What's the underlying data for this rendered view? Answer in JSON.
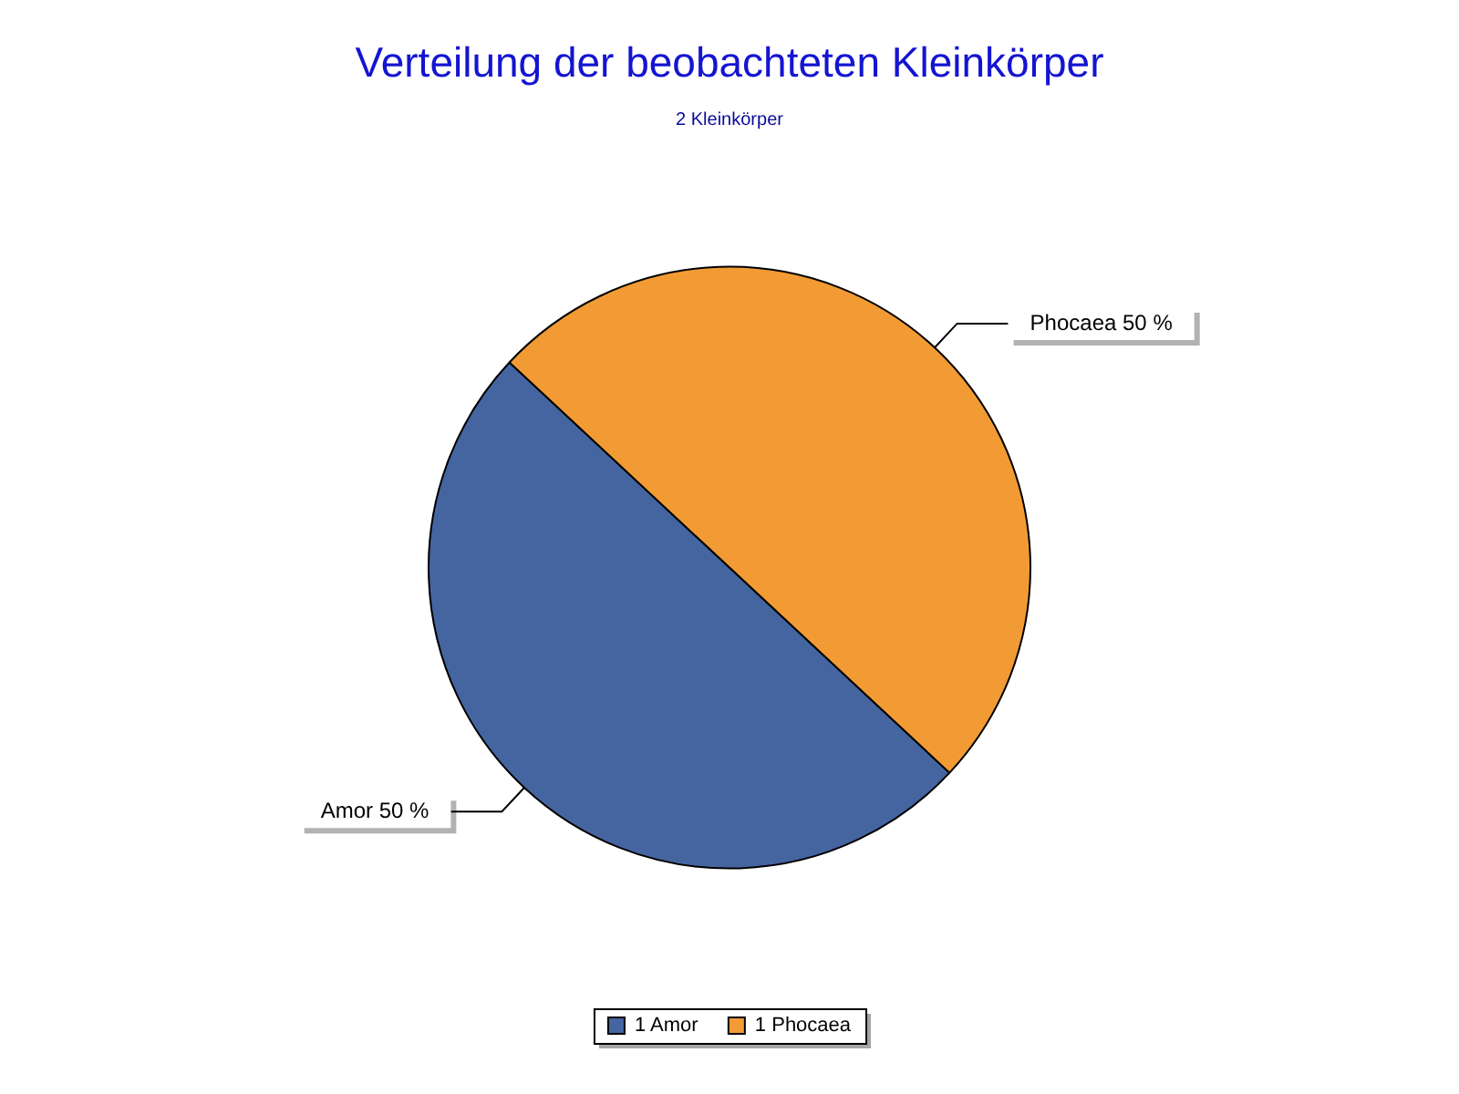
{
  "chart_data": {
    "type": "pie",
    "title": "Verteilung der beobachteten Kleinkörper",
    "subtitle": "2 Kleinkörper",
    "categories": [
      "1 Amor",
      "1 Phocaea"
    ],
    "values": [
      50,
      50
    ],
    "colors": [
      "#4565a0",
      "#f29b35"
    ],
    "value_labels": [
      "Amor 50 %",
      "Phocaea 50 %"
    ],
    "legend": "bottom"
  }
}
